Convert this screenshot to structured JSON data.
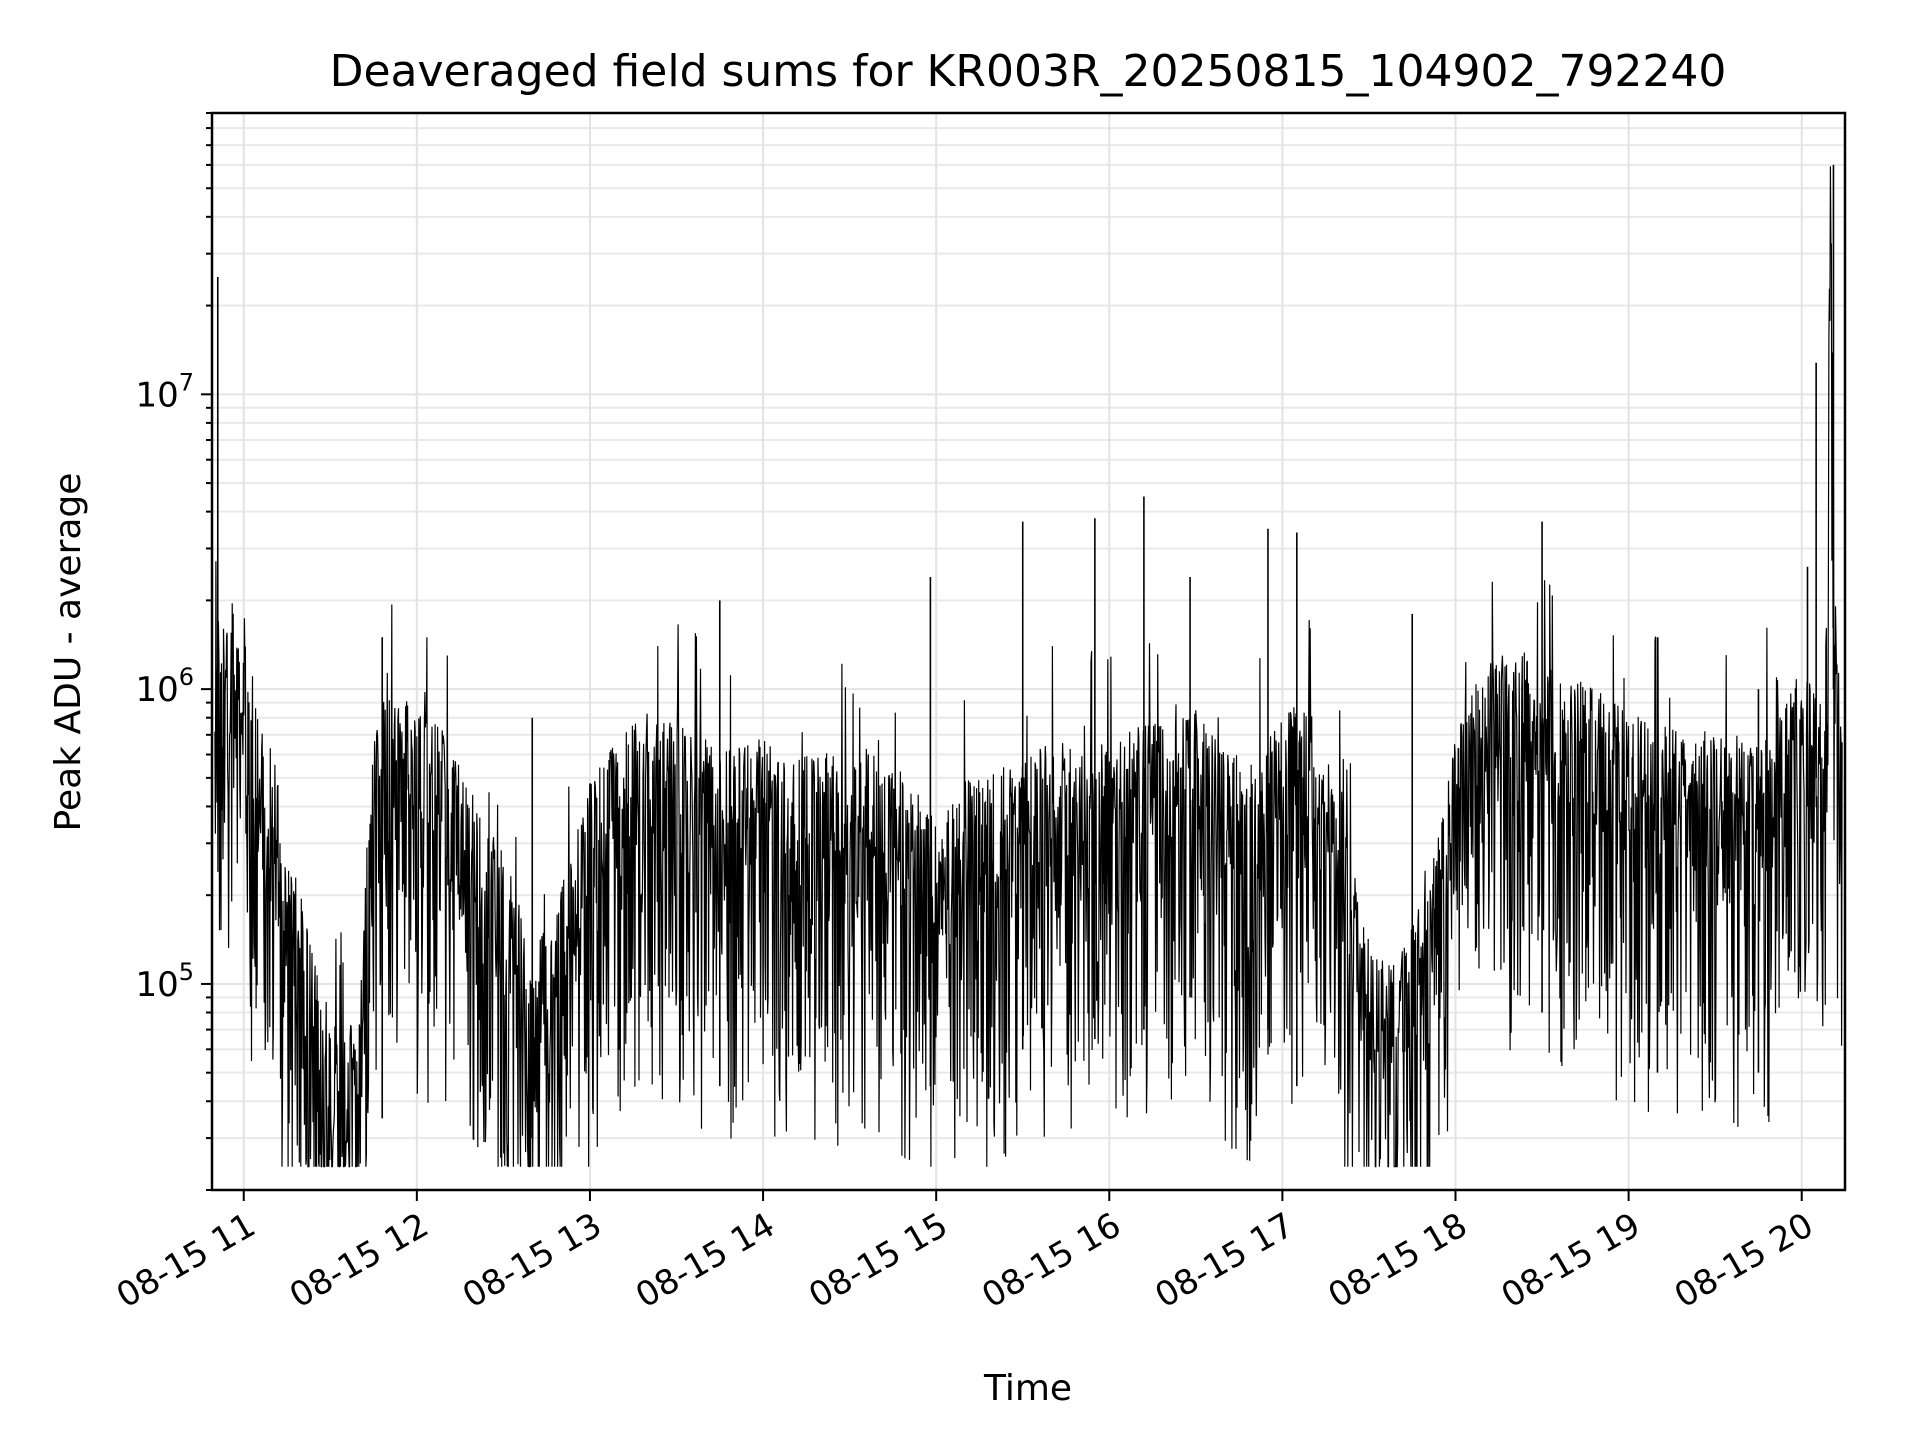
{
  "chart_data": {
    "type": "line",
    "title": "Deaveraged field sums for KR003R_20250815_104902_792240",
    "xlabel": "Time",
    "ylabel": "Peak ADU - average",
    "yscale": "log",
    "xlim": [
      "08-15 10:49",
      "08-15 20:15"
    ],
    "ylim": [
      20000,
      90000000
    ],
    "grid": "major+minor",
    "line_color": "#000000",
    "x_ticks": [
      "08-15 11",
      "08-15 12",
      "08-15 13",
      "08-15 14",
      "08-15 15",
      "08-15 16",
      "08-15 17",
      "08-15 18",
      "08-15 19",
      "08-15 20"
    ],
    "y_ticks": [
      {
        "value": 100000,
        "base": "10",
        "exp": "5"
      },
      {
        "value": 1000000,
        "base": "10",
        "exp": "6"
      },
      {
        "value": 10000000,
        "base": "10",
        "exp": "7"
      }
    ],
    "series": [
      {
        "x": [
          "08-15 10:50",
          "08-15 10:51",
          "08-15 10:52",
          "08-15 10:53",
          "08-15 10:55",
          "08-15 10:58",
          "08-15 11:00",
          "08-15 11:05",
          "08-15 11:10",
          "08-15 11:15",
          "08-15 11:20",
          "08-15 11:25",
          "08-15 11:30",
          "08-15 11:35",
          "08-15 11:40",
          "08-15 11:45",
          "08-15 11:50",
          "08-15 11:55",
          "08-15 12:00",
          "08-15 12:10",
          "08-15 12:20",
          "08-15 12:30",
          "08-15 12:40",
          "08-15 12:50",
          "08-15 13:00",
          "08-15 13:10",
          "08-15 13:20",
          "08-15 13:30",
          "08-15 13:40",
          "08-15 13:50",
          "08-15 14:00",
          "08-15 14:10",
          "08-15 14:20",
          "08-15 14:30",
          "08-15 14:40",
          "08-15 14:50",
          "08-15 15:00",
          "08-15 15:10",
          "08-15 15:20",
          "08-15 15:30",
          "08-15 15:40",
          "08-15 15:50",
          "08-15 16:00",
          "08-15 16:10",
          "08-15 16:20",
          "08-15 16:30",
          "08-15 16:40",
          "08-15 16:50",
          "08-15 17:00",
          "08-15 17:10",
          "08-15 17:20",
          "08-15 17:30",
          "08-15 17:40",
          "08-15 17:50",
          "08-15 18:00",
          "08-15 18:10",
          "08-15 18:20",
          "08-15 18:30",
          "08-15 18:40",
          "08-15 18:50",
          "08-15 19:00",
          "08-15 19:10",
          "08-15 19:20",
          "08-15 19:30",
          "08-15 19:40",
          "08-15 19:50",
          "08-15 20:00",
          "08-15 20:05",
          "08-15 20:08",
          "08-15 20:10",
          "08-15 20:12",
          "08-15 20:14"
        ],
        "y": [
          2500000,
          1500000,
          1300000,
          1400000,
          1600000,
          1200000,
          1300000,
          600000,
          500000,
          200000,
          150000,
          80000,
          60000,
          50000,
          60000,
          600000,
          700000,
          650000,
          700000,
          500000,
          300000,
          200000,
          100000,
          150000,
          350000,
          500000,
          600000,
          550000,
          500000,
          450000,
          500000,
          400000,
          450000,
          400000,
          500000,
          400000,
          250000,
          350000,
          400000,
          400000,
          500000,
          450000,
          500000,
          550000,
          550000,
          600000,
          450000,
          400000,
          600000,
          700000,
          300000,
          100000,
          90000,
          150000,
          500000,
          900000,
          1000000,
          900000,
          800000,
          700000,
          600000,
          550000,
          500000,
          500000,
          500000,
          550000,
          900000,
          700000,
          600000,
          50000000,
          1000000,
          600000
        ],
        "spikes": [
          {
            "x": "08-15 10:51",
            "high": 25000000,
            "low": 1000000
          },
          {
            "x": "08-15 11:48",
            "high": 1500000,
            "low": 35000
          },
          {
            "x": "08-15 12:40",
            "high": 800000,
            "low": 30000
          },
          {
            "x": "08-15 13:45",
            "high": 2000000,
            "low": 45000
          },
          {
            "x": "08-15 14:58",
            "high": 2400000,
            "low": 45000
          },
          {
            "x": "08-15 15:30",
            "high": 3700000,
            "low": 60000
          },
          {
            "x": "08-15 15:55",
            "high": 3800000,
            "low": 65000
          },
          {
            "x": "08-15 16:12",
            "high": 4500000,
            "low": 70000
          },
          {
            "x": "08-15 16:28",
            "high": 2400000,
            "low": 90000
          },
          {
            "x": "08-15 16:55",
            "high": 3500000,
            "low": 70000
          },
          {
            "x": "08-15 17:05",
            "high": 3400000,
            "low": 45000
          },
          {
            "x": "08-15 17:45",
            "high": 1800000,
            "low": 40000
          },
          {
            "x": "08-15 18:30",
            "high": 3700000,
            "low": 80000
          },
          {
            "x": "08-15 19:10",
            "high": 1500000,
            "low": 50000
          },
          {
            "x": "08-15 19:45",
            "high": 1000000,
            "low": 50000
          },
          {
            "x": "08-15 20:02",
            "high": 2600000,
            "low": 400000
          },
          {
            "x": "08-15 20:05",
            "high": 12800000,
            "low": 500000
          },
          {
            "x": "08-15 20:11",
            "high": 60000000,
            "low": 1000000
          }
        ]
      }
    ]
  }
}
